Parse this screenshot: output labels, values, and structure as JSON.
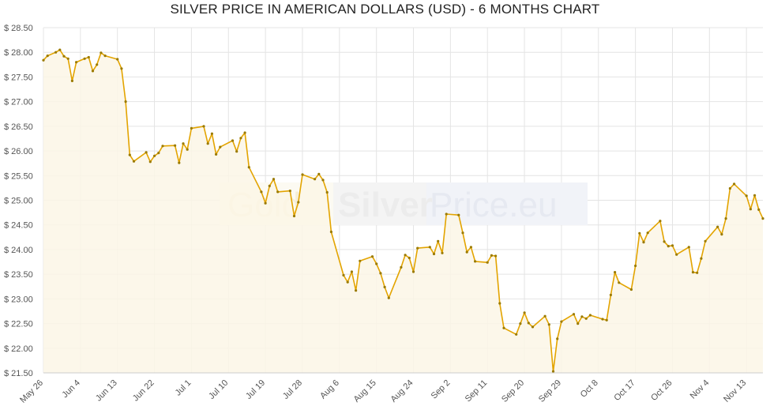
{
  "chart_data": {
    "type": "area",
    "title": "SILVER PRICE IN AMERICAN DOLLARS (USD) - 6 MONTHS CHART",
    "xlabel": "",
    "ylabel": "",
    "currency_prefix": "$ ",
    "ylim": [
      21.5,
      28.5
    ],
    "y_ticks": [
      "21.50",
      "22.00",
      "22.50",
      "23.00",
      "23.50",
      "24.00",
      "24.50",
      "25.00",
      "25.50",
      "26.00",
      "26.50",
      "27.00",
      "27.50",
      "28.00",
      "28.50"
    ],
    "x_ticks": [
      "May 26",
      "Jun 4",
      "Jun 13",
      "Jun 22",
      "Jul 1",
      "Jul 10",
      "Jul 19",
      "Jul 28",
      "Aug 6",
      "Aug 15",
      "Aug 24",
      "Sep 2",
      "Sep 11",
      "Sep 20",
      "Sep 29",
      "Oct 8",
      "Oct 17",
      "Oct 26",
      "Nov 4",
      "Nov 13"
    ],
    "grid": true,
    "legend": "none",
    "line_color": "#e3a400",
    "fill_color": "#fbf6e6",
    "watermark": {
      "part1": "Gold",
      "part2": "Silver",
      "part3": "Price.eu"
    },
    "points": [
      [
        0,
        27.84
      ],
      [
        1,
        27.93
      ],
      [
        3,
        28.0
      ],
      [
        4,
        28.05
      ],
      [
        5,
        27.92
      ],
      [
        6,
        27.87
      ],
      [
        7,
        27.42
      ],
      [
        8,
        27.8
      ],
      [
        10,
        27.87
      ],
      [
        11,
        27.9
      ],
      [
        12,
        27.62
      ],
      [
        13,
        27.75
      ],
      [
        14,
        27.99
      ],
      [
        15,
        27.93
      ],
      [
        18,
        27.86
      ],
      [
        19,
        27.67
      ],
      [
        20,
        27.0
      ],
      [
        21,
        25.92
      ],
      [
        22,
        25.79
      ],
      [
        25,
        25.97
      ],
      [
        26,
        25.78
      ],
      [
        27,
        25.9
      ],
      [
        28,
        25.96
      ],
      [
        29,
        26.1
      ],
      [
        32,
        26.11
      ],
      [
        33,
        25.76
      ],
      [
        34,
        26.15
      ],
      [
        35,
        26.03
      ],
      [
        36,
        26.46
      ],
      [
        39,
        26.5
      ],
      [
        40,
        26.15
      ],
      [
        41,
        26.35
      ],
      [
        42,
        25.93
      ],
      [
        43,
        26.08
      ],
      [
        46,
        26.21
      ],
      [
        47,
        25.99
      ],
      [
        48,
        26.26
      ],
      [
        49,
        26.37
      ],
      [
        50,
        25.67
      ],
      [
        53,
        25.17
      ],
      [
        54,
        24.94
      ],
      [
        55,
        25.29
      ],
      [
        56,
        25.43
      ],
      [
        57,
        25.17
      ],
      [
        60,
        25.19
      ],
      [
        61,
        24.68
      ],
      [
        62,
        24.96
      ],
      [
        63,
        25.52
      ],
      [
        66,
        25.43
      ],
      [
        67,
        25.53
      ],
      [
        68,
        25.41
      ],
      [
        69,
        25.16
      ],
      [
        70,
        24.36
      ],
      [
        73,
        23.48
      ],
      [
        74,
        23.34
      ],
      [
        75,
        23.55
      ],
      [
        76,
        23.17
      ],
      [
        77,
        23.77
      ],
      [
        80,
        23.86
      ],
      [
        81,
        23.71
      ],
      [
        82,
        23.52
      ],
      [
        83,
        23.24
      ],
      [
        84,
        23.02
      ],
      [
        87,
        23.64
      ],
      [
        88,
        23.89
      ],
      [
        89,
        23.83
      ],
      [
        90,
        23.55
      ],
      [
        91,
        24.03
      ],
      [
        94,
        24.05
      ],
      [
        95,
        23.91
      ],
      [
        96,
        24.17
      ],
      [
        97,
        23.93
      ],
      [
        98,
        24.72
      ],
      [
        101,
        24.7
      ],
      [
        102,
        24.34
      ],
      [
        103,
        23.95
      ],
      [
        104,
        24.05
      ],
      [
        105,
        23.76
      ],
      [
        108,
        23.74
      ],
      [
        109,
        23.88
      ],
      [
        110,
        23.87
      ],
      [
        111,
        22.91
      ],
      [
        112,
        22.41
      ],
      [
        115,
        22.28
      ],
      [
        116,
        22.5
      ],
      [
        117,
        22.72
      ],
      [
        118,
        22.51
      ],
      [
        119,
        22.43
      ],
      [
        122,
        22.65
      ],
      [
        123,
        22.48
      ],
      [
        124,
        21.53
      ],
      [
        125,
        22.19
      ],
      [
        126,
        22.54
      ],
      [
        129,
        22.69
      ],
      [
        130,
        22.5
      ],
      [
        131,
        22.64
      ],
      [
        132,
        22.6
      ],
      [
        133,
        22.67
      ],
      [
        136,
        22.59
      ],
      [
        137,
        22.57
      ],
      [
        138,
        23.08
      ],
      [
        139,
        23.54
      ],
      [
        140,
        23.33
      ],
      [
        143,
        23.19
      ],
      [
        144,
        23.67
      ],
      [
        145,
        24.33
      ],
      [
        146,
        24.15
      ],
      [
        147,
        24.34
      ],
      [
        150,
        24.58
      ],
      [
        151,
        24.16
      ],
      [
        152,
        24.07
      ],
      [
        153,
        24.08
      ],
      [
        154,
        23.9
      ],
      [
        157,
        24.05
      ],
      [
        158,
        23.54
      ],
      [
        159,
        23.53
      ],
      [
        160,
        23.82
      ],
      [
        161,
        24.17
      ],
      [
        164,
        24.46
      ],
      [
        165,
        24.31
      ],
      [
        166,
        24.63
      ],
      [
        167,
        25.24
      ],
      [
        168,
        25.33
      ],
      [
        171,
        25.09
      ],
      [
        172,
        24.82
      ],
      [
        173,
        25.1
      ],
      [
        174,
        24.81
      ],
      [
        175,
        24.63
      ]
    ]
  }
}
